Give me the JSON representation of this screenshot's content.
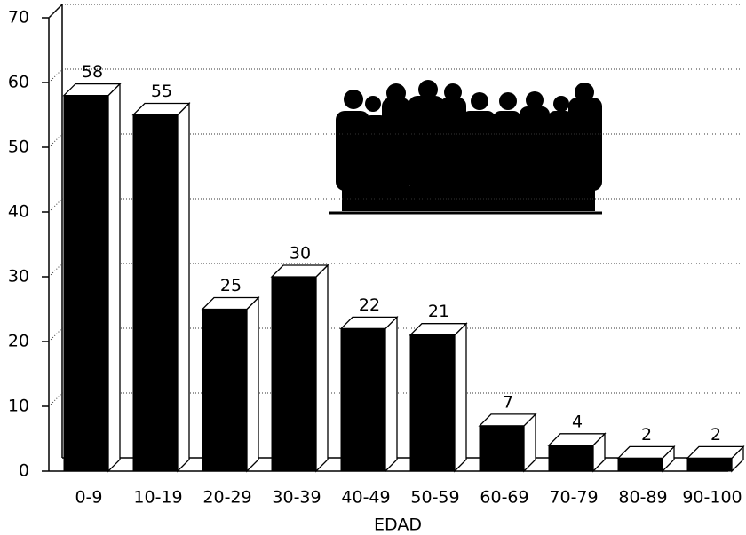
{
  "chart_data": {
    "type": "bar3d",
    "categories": [
      "0-9",
      "10-19",
      "20-29",
      "30-39",
      "40-49",
      "50-59",
      "60-69",
      "70-79",
      "80-89",
      "90-100"
    ],
    "values": [
      58,
      55,
      25,
      30,
      22,
      21,
      7,
      4,
      2,
      2
    ],
    "color": "#000000",
    "x_label": "EDAD",
    "ylim": [
      0,
      70
    ],
    "yticks": [
      0,
      10,
      20,
      30,
      40,
      50,
      60,
      70
    ],
    "grid": true
  }
}
